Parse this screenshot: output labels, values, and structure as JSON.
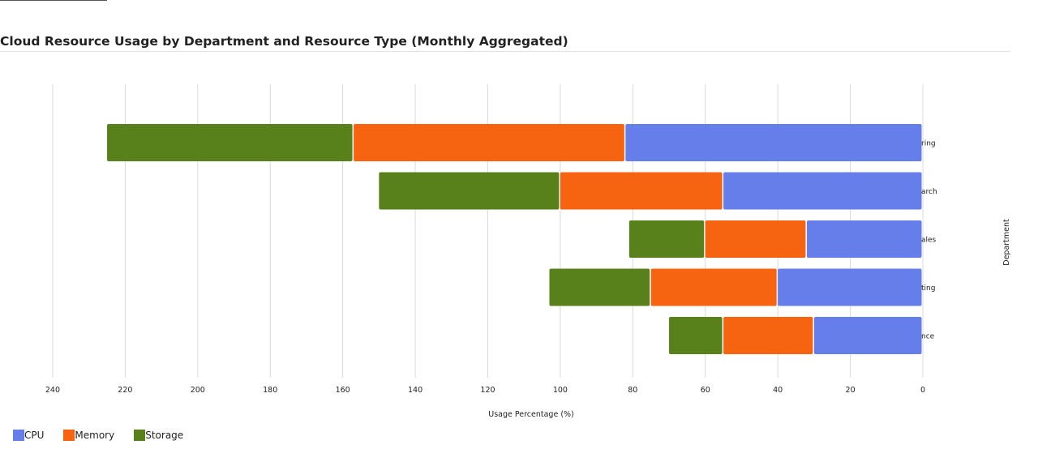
{
  "chart_data": {
    "type": "bar",
    "orientation": "horizontal",
    "stacked": true,
    "title": "Cloud Resource Usage by Department and Resource Type (Monthly Aggregated)",
    "xlabel": "Usage Percentage (%)",
    "ylabel": "Department",
    "x_reversed": true,
    "xlim": [
      0,
      240
    ],
    "xticks": [
      "240",
      "220",
      "200",
      "180",
      "160",
      "140",
      "120",
      "100",
      "80",
      "60",
      "40",
      "20",
      "0"
    ],
    "grid": true,
    "legend_position": "bottom-left",
    "categories": [
      "ring",
      "arch",
      "ales",
      "ting",
      "nce"
    ],
    "series": [
      {
        "name": "CPU",
        "color": "#667eea",
        "values": [
          82,
          55,
          32,
          40,
          30
        ]
      },
      {
        "name": "Memory",
        "color": "#f76411",
        "values": [
          75,
          45,
          28,
          35,
          25
        ]
      },
      {
        "name": "Storage",
        "color": "#58811c",
        "values": [
          68,
          50,
          21,
          28,
          15
        ]
      }
    ]
  }
}
